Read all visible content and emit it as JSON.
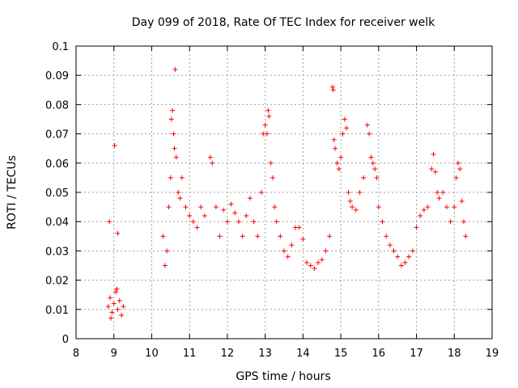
{
  "chart_data": {
    "type": "scatter",
    "title": "Day 099 of 2018, Rate Of TEC Index for receiver welk",
    "xlabel": "GPS time / hours",
    "ylabel": "ROTI / TECUs",
    "xlim": [
      8,
      19
    ],
    "ylim": [
      0,
      0.1
    ],
    "xticks": [
      "8",
      "9",
      "10",
      "11",
      "12",
      "13",
      "14",
      "15",
      "16",
      "17",
      "18",
      "19"
    ],
    "yticks": [
      "0",
      "0.01",
      "0.02",
      "0.03",
      "0.04",
      "0.05",
      "0.06",
      "0.07",
      "0.08",
      "0.09",
      "0.1"
    ],
    "grid": true,
    "marker": "+",
    "marker_color": "#ff0000",
    "series": [
      {
        "name": "ROTI",
        "points": [
          [
            8.88,
            0.04
          ],
          [
            9.02,
            0.066
          ],
          [
            9.1,
            0.036
          ],
          [
            8.85,
            0.011
          ],
          [
            8.9,
            0.014
          ],
          [
            8.95,
            0.009
          ],
          [
            9.0,
            0.012
          ],
          [
            9.05,
            0.016
          ],
          [
            9.1,
            0.01
          ],
          [
            9.15,
            0.013
          ],
          [
            9.2,
            0.008
          ],
          [
            9.25,
            0.011
          ],
          [
            8.92,
            0.007
          ],
          [
            9.08,
            0.017
          ],
          [
            10.3,
            0.035
          ],
          [
            10.35,
            0.025
          ],
          [
            10.4,
            0.03
          ],
          [
            10.45,
            0.045
          ],
          [
            10.5,
            0.055
          ],
          [
            10.52,
            0.075
          ],
          [
            10.55,
            0.078
          ],
          [
            10.58,
            0.07
          ],
          [
            10.6,
            0.065
          ],
          [
            10.62,
            0.092
          ],
          [
            10.65,
            0.062
          ],
          [
            10.7,
            0.05
          ],
          [
            10.75,
            0.048
          ],
          [
            10.8,
            0.055
          ],
          [
            10.9,
            0.045
          ],
          [
            11.0,
            0.042
          ],
          [
            11.1,
            0.04
          ],
          [
            11.2,
            0.038
          ],
          [
            11.3,
            0.045
          ],
          [
            11.4,
            0.042
          ],
          [
            11.55,
            0.062
          ],
          [
            11.6,
            0.06
          ],
          [
            11.7,
            0.045
          ],
          [
            11.8,
            0.035
          ],
          [
            11.9,
            0.044
          ],
          [
            12.0,
            0.04
          ],
          [
            12.1,
            0.046
          ],
          [
            12.2,
            0.043
          ],
          [
            12.3,
            0.04
          ],
          [
            12.4,
            0.035
          ],
          [
            12.5,
            0.042
          ],
          [
            12.6,
            0.048
          ],
          [
            12.7,
            0.04
          ],
          [
            12.8,
            0.035
          ],
          [
            12.9,
            0.05
          ],
          [
            12.95,
            0.07
          ],
          [
            13.0,
            0.073
          ],
          [
            13.05,
            0.07
          ],
          [
            13.08,
            0.078
          ],
          [
            13.1,
            0.076
          ],
          [
            13.15,
            0.06
          ],
          [
            13.2,
            0.055
          ],
          [
            13.25,
            0.045
          ],
          [
            13.3,
            0.04
          ],
          [
            13.4,
            0.035
          ],
          [
            13.5,
            0.03
          ],
          [
            13.6,
            0.028
          ],
          [
            13.7,
            0.032
          ],
          [
            13.8,
            0.038
          ],
          [
            13.9,
            0.038
          ],
          [
            14.0,
            0.034
          ],
          [
            14.1,
            0.026
          ],
          [
            14.2,
            0.025
          ],
          [
            14.3,
            0.024
          ],
          [
            14.4,
            0.026
          ],
          [
            14.5,
            0.027
          ],
          [
            14.6,
            0.03
          ],
          [
            14.7,
            0.035
          ],
          [
            14.78,
            0.086
          ],
          [
            14.8,
            0.085
          ],
          [
            14.82,
            0.068
          ],
          [
            14.85,
            0.065
          ],
          [
            14.9,
            0.06
          ],
          [
            14.95,
            0.058
          ],
          [
            15.0,
            0.062
          ],
          [
            15.05,
            0.07
          ],
          [
            15.1,
            0.075
          ],
          [
            15.15,
            0.072
          ],
          [
            15.2,
            0.05
          ],
          [
            15.25,
            0.047
          ],
          [
            15.3,
            0.045
          ],
          [
            15.4,
            0.044
          ],
          [
            15.5,
            0.05
          ],
          [
            15.6,
            0.055
          ],
          [
            15.7,
            0.073
          ],
          [
            15.75,
            0.07
          ],
          [
            15.8,
            0.062
          ],
          [
            15.85,
            0.06
          ],
          [
            15.9,
            0.058
          ],
          [
            15.95,
            0.055
          ],
          [
            16.0,
            0.045
          ],
          [
            16.1,
            0.04
          ],
          [
            16.2,
            0.035
          ],
          [
            16.3,
            0.032
          ],
          [
            16.4,
            0.03
          ],
          [
            16.5,
            0.028
          ],
          [
            16.6,
            0.025
          ],
          [
            16.7,
            0.026
          ],
          [
            16.8,
            0.028
          ],
          [
            16.9,
            0.03
          ],
          [
            17.0,
            0.038
          ],
          [
            17.1,
            0.042
          ],
          [
            17.2,
            0.044
          ],
          [
            17.3,
            0.045
          ],
          [
            17.4,
            0.058
          ],
          [
            17.45,
            0.063
          ],
          [
            17.5,
            0.057
          ],
          [
            17.55,
            0.05
          ],
          [
            17.6,
            0.048
          ],
          [
            17.7,
            0.05
          ],
          [
            17.8,
            0.045
          ],
          [
            17.9,
            0.04
          ],
          [
            18.0,
            0.045
          ],
          [
            18.05,
            0.055
          ],
          [
            18.1,
            0.06
          ],
          [
            18.15,
            0.058
          ],
          [
            18.2,
            0.047
          ],
          [
            18.25,
            0.04
          ],
          [
            18.3,
            0.035
          ]
        ]
      }
    ]
  }
}
